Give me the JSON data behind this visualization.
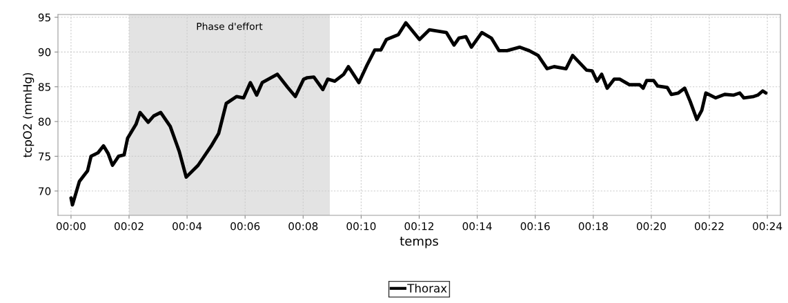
{
  "chart_data": {
    "type": "line",
    "xlabel": "temps",
    "ylabel": "tcpO2 (mmHg)",
    "xlim": [
      -0.45,
      24.45
    ],
    "ylim": [
      66.5,
      95.4
    ],
    "xticks": [
      {
        "value": 0,
        "label": "00:00"
      },
      {
        "value": 2,
        "label": "00:02"
      },
      {
        "value": 4,
        "label": "00:04"
      },
      {
        "value": 6,
        "label": "00:06"
      },
      {
        "value": 8,
        "label": "00:08"
      },
      {
        "value": 10,
        "label": "00:10"
      },
      {
        "value": 12,
        "label": "00:12"
      },
      {
        "value": 14,
        "label": "00:14"
      },
      {
        "value": 16,
        "label": "00:16"
      },
      {
        "value": 18,
        "label": "00:18"
      },
      {
        "value": 20,
        "label": "00:20"
      },
      {
        "value": 22,
        "label": "00:22"
      },
      {
        "value": 24,
        "label": "00:24"
      }
    ],
    "yticks": [
      70,
      75,
      80,
      85,
      90,
      95
    ],
    "grid": true,
    "legend": "bottom",
    "line_style": "solid",
    "bands": [
      {
        "axis": "x",
        "from": 2,
        "to": 8.92,
        "label": "Phase d'effort",
        "color": "#e3e3e3"
      }
    ],
    "series": [
      {
        "name": "Thorax",
        "color": "#000000",
        "x": [
          0.0,
          0.05,
          0.29,
          0.57,
          0.69,
          0.93,
          1.12,
          1.28,
          1.43,
          1.64,
          1.83,
          1.95,
          2.24,
          2.38,
          2.66,
          2.85,
          3.09,
          3.42,
          3.73,
          3.97,
          4.38,
          4.85,
          5.09,
          5.35,
          5.71,
          5.95,
          6.18,
          6.4,
          6.59,
          7.11,
          7.47,
          7.73,
          8.02,
          8.14,
          8.37,
          8.68,
          8.85,
          9.09,
          9.4,
          9.56,
          9.92,
          10.2,
          10.47,
          10.68,
          10.87,
          11.28,
          11.54,
          12.01,
          12.35,
          12.94,
          13.2,
          13.37,
          13.61,
          13.8,
          14.16,
          14.49,
          14.75,
          15.03,
          15.46,
          15.79,
          16.1,
          16.41,
          16.65,
          17.06,
          17.29,
          17.77,
          17.96,
          18.13,
          18.29,
          18.48,
          18.72,
          18.91,
          19.24,
          19.6,
          19.72,
          19.84,
          20.08,
          20.22,
          20.55,
          20.69,
          20.93,
          21.15,
          21.34,
          21.57,
          21.74,
          21.88,
          22.22,
          22.53,
          22.84,
          23.05,
          23.19,
          23.53,
          23.67,
          23.84,
          23.95
        ],
        "values": [
          69.0,
          68.0,
          71.4,
          72.9,
          75.0,
          75.5,
          76.5,
          75.4,
          73.7,
          75.0,
          75.2,
          77.6,
          79.6,
          81.3,
          79.9,
          80.8,
          81.3,
          79.3,
          75.7,
          72.0,
          73.7,
          76.6,
          78.3,
          82.6,
          83.6,
          83.4,
          85.6,
          83.8,
          85.6,
          86.8,
          84.9,
          83.6,
          86.1,
          86.3,
          86.4,
          84.6,
          86.1,
          85.8,
          86.8,
          87.9,
          85.6,
          88.1,
          90.3,
          90.3,
          91.8,
          92.5,
          94.2,
          91.8,
          93.2,
          92.8,
          91.0,
          92.0,
          92.2,
          90.7,
          92.8,
          92.0,
          90.2,
          90.2,
          90.7,
          90.2,
          89.5,
          87.6,
          87.9,
          87.6,
          89.5,
          87.4,
          87.3,
          85.8,
          86.8,
          84.8,
          86.1,
          86.1,
          85.3,
          85.3,
          84.8,
          85.9,
          85.9,
          85.1,
          84.9,
          83.9,
          84.1,
          84.8,
          82.9,
          80.3,
          81.6,
          84.1,
          83.4,
          83.9,
          83.8,
          84.1,
          83.4,
          83.6,
          83.8,
          84.4,
          84.1
        ]
      }
    ]
  }
}
